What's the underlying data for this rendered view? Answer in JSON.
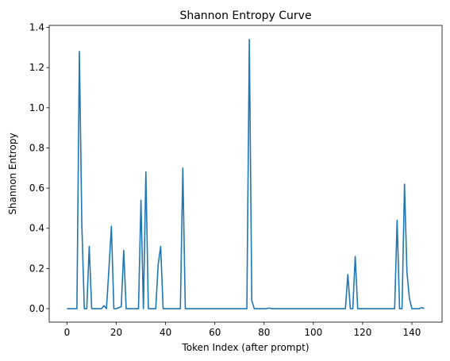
{
  "chart_data": {
    "type": "line",
    "title": "Shannon Entropy Curve",
    "xlabel": "Token Index (after prompt)",
    "ylabel": "Shannon Entropy",
    "xlim": [
      -7.25,
      152.25
    ],
    "ylim": [
      -0.067,
      1.41
    ],
    "xticks": [
      0,
      20,
      40,
      60,
      80,
      100,
      120,
      140
    ],
    "yticks": [
      0.0,
      0.2,
      0.4,
      0.6,
      0.8,
      1.0,
      1.2,
      1.4
    ],
    "xtick_labels": [
      "0",
      "20",
      "40",
      "60",
      "80",
      "100",
      "120",
      "140"
    ],
    "ytick_labels": [
      "0.0",
      "0.2",
      "0.4",
      "0.6",
      "0.8",
      "1.0",
      "1.2",
      "1.4"
    ],
    "grid": false,
    "color": "#1f77b4",
    "series": [
      {
        "points": [
          [
            0,
            0.0
          ],
          [
            1,
            0.0
          ],
          [
            2,
            0.0
          ],
          [
            3,
            0.0
          ],
          [
            4,
            0.0
          ],
          [
            5,
            1.28
          ],
          [
            6,
            0.42
          ],
          [
            7,
            0.0
          ],
          [
            8,
            0.0
          ],
          [
            9,
            0.31
          ],
          [
            10,
            0.0
          ],
          [
            11,
            0.0
          ],
          [
            12,
            0.0
          ],
          [
            13,
            0.0
          ],
          [
            14,
            0.0
          ],
          [
            15,
            0.015
          ],
          [
            16,
            0.0
          ],
          [
            17,
            0.2
          ],
          [
            18,
            0.41
          ],
          [
            19,
            0.0
          ],
          [
            20,
            0.0
          ],
          [
            21,
            0.005
          ],
          [
            22,
            0.01
          ],
          [
            23,
            0.29
          ],
          [
            24,
            0.0
          ],
          [
            25,
            0.0
          ],
          [
            26,
            0.0
          ],
          [
            27,
            0.0
          ],
          [
            28,
            0.0
          ],
          [
            29,
            0.0
          ],
          [
            30,
            0.54
          ],
          [
            31,
            0.0
          ],
          [
            32,
            0.68
          ],
          [
            33,
            0.0
          ],
          [
            34,
            0.0
          ],
          [
            35,
            0.0
          ],
          [
            36,
            0.0
          ],
          [
            37,
            0.22
          ],
          [
            38,
            0.31
          ],
          [
            39,
            0.0
          ],
          [
            40,
            0.0
          ],
          [
            41,
            0.0
          ],
          [
            42,
            0.0
          ],
          [
            43,
            0.0
          ],
          [
            44,
            0.0
          ],
          [
            45,
            0.0
          ],
          [
            46,
            0.0
          ],
          [
            47,
            0.7
          ],
          [
            48,
            0.0
          ],
          [
            49,
            0.0
          ],
          [
            50,
            0.0
          ],
          [
            55,
            0.0
          ],
          [
            60,
            0.0
          ],
          [
            65,
            0.0
          ],
          [
            70,
            0.0
          ],
          [
            72,
            0.0
          ],
          [
            73,
            0.0
          ],
          [
            74,
            1.34
          ],
          [
            75,
            0.04
          ],
          [
            76,
            0.0
          ],
          [
            80,
            0.0
          ],
          [
            81,
            0.0
          ],
          [
            82,
            0.003
          ],
          [
            83,
            0.0
          ],
          [
            85,
            0.0
          ],
          [
            90,
            0.0
          ],
          [
            95,
            0.0
          ],
          [
            100,
            0.0
          ],
          [
            105,
            0.0
          ],
          [
            110,
            0.0
          ],
          [
            113,
            0.0
          ],
          [
            114,
            0.17
          ],
          [
            115,
            0.0
          ],
          [
            116,
            0.0
          ],
          [
            117,
            0.26
          ],
          [
            118,
            0.0
          ],
          [
            119,
            0.0
          ],
          [
            120,
            0.0
          ],
          [
            125,
            0.0
          ],
          [
            130,
            0.0
          ],
          [
            133,
            0.0
          ],
          [
            134,
            0.44
          ],
          [
            135,
            0.0
          ],
          [
            136,
            0.0
          ],
          [
            137,
            0.62
          ],
          [
            138,
            0.18
          ],
          [
            139,
            0.05
          ],
          [
            140,
            0.0
          ],
          [
            141,
            0.0
          ],
          [
            142,
            0.0
          ],
          [
            143,
            0.0
          ],
          [
            144,
            0.005
          ],
          [
            145,
            0.0
          ]
        ]
      }
    ]
  }
}
